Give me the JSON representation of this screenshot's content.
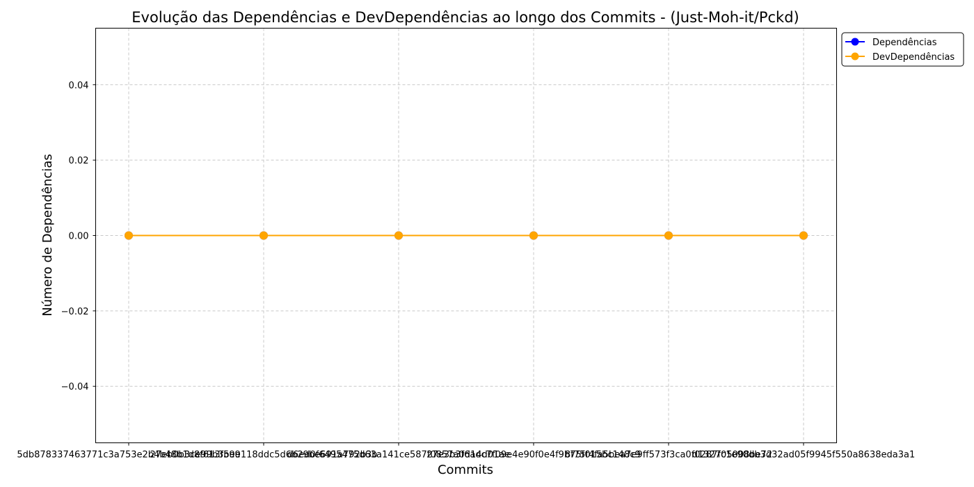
{
  "chart_data": {
    "type": "line",
    "title": "Evolução das Dependências e DevDependências ao longo dos Commits - (Just-Moh-it/Pckd)",
    "xlabel": "Commits",
    "ylabel": "Número de Dependências",
    "categories": [
      "5db878337463771c3a753e2b4b48b1d8f613f59e",
      "27eb0b3ce99b3be9118ddc5d6b29be691a792b3b",
      "d6ed0f6495475d63a141ce587f0857a0d14d01ae",
      "27e3b3f6adc7f09e4e90f0e4f9b75f015bc148c9",
      "8f75f4fa5bea7e9ff573f3ca0f0287f05008be72",
      "d1327c1e90db3d32ad05f9945f550a8638eda3a1"
    ],
    "series": [
      {
        "name": "Dependências",
        "values": [
          0,
          0,
          0,
          0,
          0,
          0
        ],
        "color": "#0000ff"
      },
      {
        "name": "DevDependências",
        "values": [
          0,
          0,
          0,
          0,
          0,
          0
        ],
        "color": "#ffa500"
      }
    ],
    "ylim": [
      -0.055,
      0.055
    ],
    "yticks": [
      -0.04,
      -0.02,
      0.0,
      0.02,
      0.04
    ],
    "ytick_labels": [
      "−0.04",
      "−0.02",
      "0.00",
      "0.02",
      "0.04"
    ],
    "grid": true,
    "legend_position": "outside-top-right"
  }
}
